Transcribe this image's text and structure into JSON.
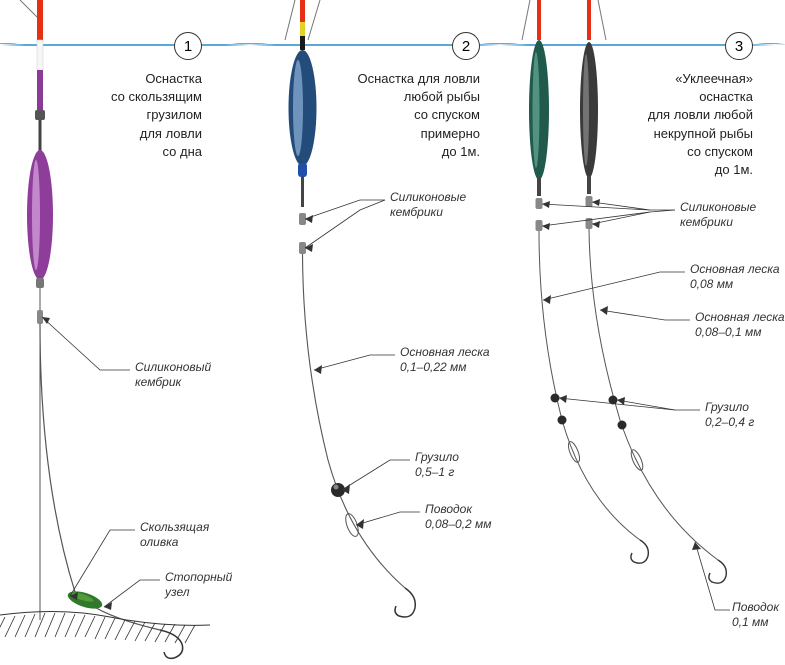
{
  "waterline_color": "#5aa8d8",
  "circle_border": "#333333",
  "text_color": "#222222",
  "label_color": "#333333",
  "panels": {
    "p1": {
      "number": "1",
      "title_lines": [
        "Оснастка",
        "со скользящим",
        "грузилом",
        "для ловли",
        "со дна"
      ],
      "labels": {
        "kembrik": "Силиконовый\nкембрик",
        "olivka": "Скользящая\nоливка",
        "uzel": "Стопорный\nузел"
      },
      "float": {
        "antenna_colors": [
          "#e53015",
          "#f6f6f6",
          "#8a3b95"
        ],
        "body_color": "#8e3d9a",
        "body_shine": "#d9a8e0",
        "stem_color": "#3a3a3a"
      },
      "olive_color": "#2f7a2a"
    },
    "p2": {
      "number": "2",
      "title_lines": [
        "Оснастка для ловли",
        "любой рыбы",
        "со спуском",
        "примерно",
        "до 1м."
      ],
      "labels": {
        "kembriki": "Силиконовые\nкембрики",
        "leska": "Основная леска\n0,1–0,22 мм",
        "gruzilo": "Грузило\n0,5–1 г",
        "povodok": "Поводок\n0,08–0,2 мм"
      },
      "float": {
        "antenna_colors": [
          "#e53015",
          "#e2d227",
          "#1a1a1a"
        ],
        "body_color": "#234c7a",
        "body_shine": "#8fb4da",
        "tip_color": "#1f4fa8",
        "stem_color": "#3a3a3a"
      },
      "sinker_color": "#2a2a2a"
    },
    "p3": {
      "number": "3",
      "title_lines": [
        "«Уклеечная»",
        "оснастка",
        "для ловли любой",
        "некрупной рыбы",
        "со спуском",
        "до 1м."
      ],
      "labels": {
        "kembriki": "Силиконовые\nкембрики",
        "leska1": "Основная леска\n0,08 мм",
        "leska2": "Основная леска\n0,08–0,1 мм",
        "gruzilo": "Грузило\n0,2–0,4 г",
        "povodok": "Поводок\n0,1 мм"
      },
      "float_left": {
        "antenna_color": "#e53015",
        "body_color": "#1f5a4d",
        "body_shine": "#6aa896"
      },
      "float_right": {
        "antenna_color": "#e53015",
        "body_color": "#3a3a3a",
        "body_shine": "#9a9a9a"
      },
      "sinker_color": "#2a2a2a"
    }
  }
}
